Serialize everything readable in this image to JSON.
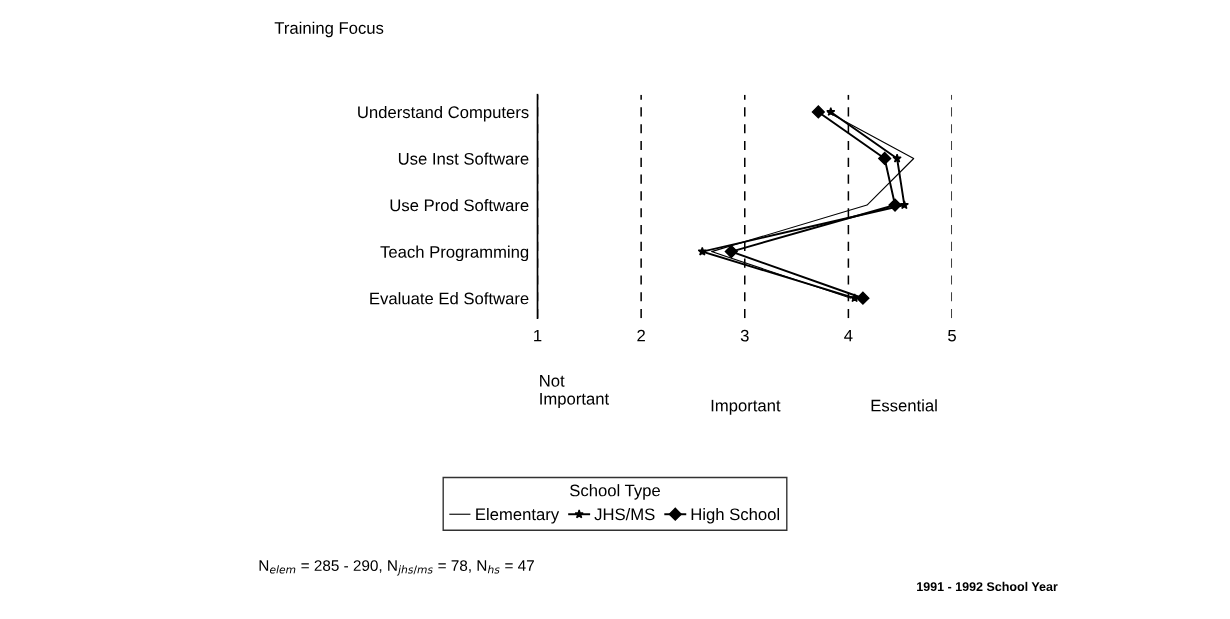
{
  "chart_data": {
    "type": "line",
    "orientation": "horizontal",
    "ylabel": "Training Focus",
    "categories": [
      "Understand Computers",
      "Use Inst Software",
      "Use Prod Software",
      "Teach Programming",
      "Evaluate Ed Software"
    ],
    "series": [
      {
        "name": "Elementary",
        "color": "#000000",
        "marker": "none",
        "values": [
          3.8,
          4.63,
          4.18,
          2.68,
          4.02
        ]
      },
      {
        "name": "JHS/MS",
        "color": "#000000",
        "marker": "star",
        "values": [
          3.83,
          4.47,
          4.54,
          2.59,
          4.06
        ]
      },
      {
        "name": "High School",
        "color": "#000000",
        "marker": "diamond",
        "values": [
          3.71,
          4.35,
          4.45,
          2.87,
          4.14
        ]
      }
    ],
    "xlim": [
      1,
      5
    ],
    "xticks": [
      1,
      2,
      3,
      4,
      5
    ],
    "grid": "x",
    "legend": "bottom",
    "legend_title": "School Type",
    "annotations": [
      "Not\nImportant",
      "Important",
      "Essential",
      "N$_{elem}$ = 285 - 290, N$_{jhs/ms}$ = 78, N$_{hs}$ = 47",
      "1991 - 1992 School Year"
    ]
  }
}
